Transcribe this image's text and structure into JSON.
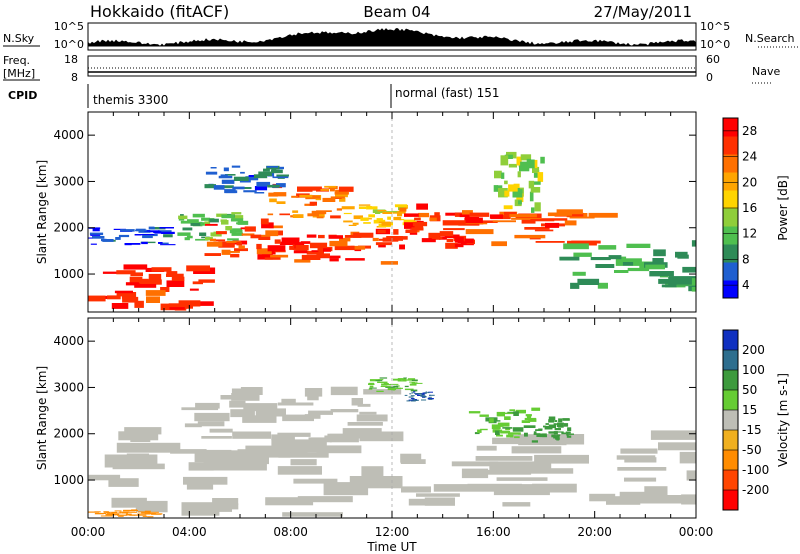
{
  "header": {
    "station": "Hokkaido (fitACF)",
    "beam": "Beam 04",
    "date": "27/May/2011"
  },
  "top_panels": {
    "nsky_label": "N.Sky",
    "nsky_tick_top": "10^5",
    "nsky_tick_bottom": "10^0",
    "nsearch_label": "N.Search",
    "nsearch_tick_top": "10^5",
    "nsearch_tick_bottom": "10^0",
    "freq_label": "Freq.",
    "freq_unit": "[MHz]",
    "freq_tick_top": "18",
    "freq_tick_bottom": "8",
    "nave_label": "Nave",
    "nave_tick_top": "60",
    "nave_tick_bottom": "0",
    "cpid_label": "CPID",
    "cpid_mode_1": "themis 3300",
    "cpid_mode_2": "normal (fast) 151"
  },
  "x_axis": {
    "label": "Time UT",
    "ticks": [
      "00:00",
      "04:00",
      "08:00",
      "12:00",
      "16:00",
      "20:00",
      "00:00"
    ]
  },
  "y_axis": {
    "label": "Slant Range [km]",
    "ticks": [
      "1000",
      "2000",
      "3000",
      "4000"
    ]
  },
  "power_colorbar": {
    "label": "Power [dB]",
    "ticks": [
      "4",
      "8",
      "12",
      "16",
      "20",
      "24",
      "28"
    ],
    "colors": [
      "#0000ff",
      "#1f5fd0",
      "#2e8b57",
      "#4fbf4f",
      "#8fce3a",
      "#ffd400",
      "#ffa500",
      "#ff7000",
      "#ff3000",
      "#ff0000"
    ]
  },
  "velocity_colorbar": {
    "label": "Velocity [m s-1]",
    "ticks": [
      "200",
      "100",
      "50",
      "15",
      "-15",
      "-50",
      "-100",
      "-200"
    ],
    "colors": [
      "#1030c0",
      "#2e6e8e",
      "#3d9a3d",
      "#66cc33",
      "#bebeb6",
      "#f0b020",
      "#ff8c00",
      "#ff4500",
      "#ff0000"
    ]
  },
  "chart_data": [
    {
      "type": "heatmap",
      "title": "",
      "xlabel": "Time UT",
      "ylabel": "Slant Range [km]",
      "xlim": [
        0,
        24
      ],
      "ylim": [
        180,
        4500
      ],
      "colorbar_label": "Power [dB]",
      "colorbar_ticks": [
        4,
        8,
        12,
        16,
        20,
        24,
        28
      ],
      "bands": [
        {
          "t_start": 0.0,
          "t_end": 4.5,
          "r_low": 200,
          "r_high": 1100,
          "value": 28
        },
        {
          "t_start": 0.0,
          "t_end": 3.0,
          "r_low": 1600,
          "r_high": 2000,
          "value": 4
        },
        {
          "t_start": 3.5,
          "t_end": 6.0,
          "r_low": 1700,
          "r_high": 2300,
          "value": 12
        },
        {
          "t_start": 4.5,
          "t_end": 8.0,
          "r_low": 1300,
          "r_high": 2100,
          "value": 26
        },
        {
          "t_start": 7.0,
          "t_end": 10.0,
          "r_low": 2200,
          "r_high": 2900,
          "value": 24
        },
        {
          "t_start": 8.0,
          "t_end": 12.0,
          "r_low": 1200,
          "r_high": 1900,
          "value": 27
        },
        {
          "t_start": 10.0,
          "t_end": 12.5,
          "r_low": 2000,
          "r_high": 2500,
          "value": 18
        },
        {
          "t_start": 12.0,
          "t_end": 15.0,
          "r_low": 1500,
          "r_high": 2400,
          "value": 28
        },
        {
          "t_start": 14.0,
          "t_end": 20.0,
          "r_low": 1600,
          "r_high": 2300,
          "value": 26
        },
        {
          "t_start": 16.0,
          "t_end": 18.0,
          "r_low": 2300,
          "r_high": 3600,
          "value": 14
        },
        {
          "t_start": 18.5,
          "t_end": 24.0,
          "r_low": 600,
          "r_high": 1600,
          "value": 10
        },
        {
          "t_start": 4.5,
          "t_end": 7.5,
          "r_low": 2700,
          "r_high": 3300,
          "value": 6
        }
      ]
    },
    {
      "type": "heatmap",
      "title": "",
      "xlabel": "Time UT",
      "ylabel": "Slant Range [km]",
      "xlim": [
        0,
        24
      ],
      "ylim": [
        180,
        4500
      ],
      "colorbar_label": "Velocity [m s-1]",
      "colorbar_ticks": [
        200,
        100,
        50,
        15,
        -15,
        -50,
        -100,
        -200
      ],
      "bands": [
        {
          "t_start": 0.0,
          "t_end": 12.0,
          "r_low": 200,
          "r_high": 2000,
          "value": 0
        },
        {
          "t_start": 3.5,
          "t_end": 11.0,
          "r_low": 1800,
          "r_high": 2900,
          "value": 0
        },
        {
          "t_start": 12.0,
          "t_end": 24.0,
          "r_low": 400,
          "r_high": 1900,
          "value": 0
        },
        {
          "t_start": 11.0,
          "t_end": 13.0,
          "r_low": 2900,
          "r_high": 3200,
          "value": 30
        },
        {
          "t_start": 15.0,
          "t_end": 17.5,
          "r_low": 1900,
          "r_high": 2500,
          "value": 30
        },
        {
          "t_start": 17.5,
          "t_end": 19.0,
          "r_low": 1800,
          "r_high": 2300,
          "value": 40
        },
        {
          "t_start": 12.5,
          "t_end": 13.5,
          "r_low": 2700,
          "r_high": 2900,
          "value": 150
        },
        {
          "t_start": 0.0,
          "t_end": 2.5,
          "r_low": 200,
          "r_high": 350,
          "value": -50
        }
      ]
    }
  ]
}
